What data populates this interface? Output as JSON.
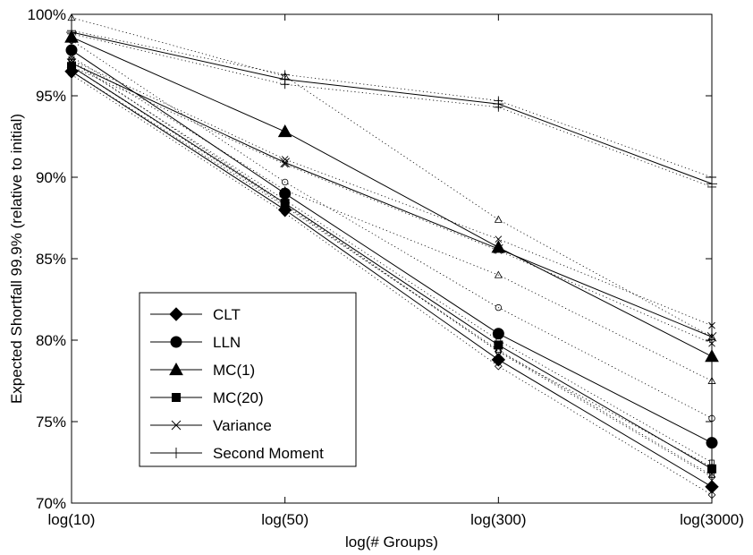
{
  "chart_data": {
    "type": "line",
    "xlabel": "log(# Groups)",
    "ylabel": "Expected Shortfall 99.9% (relative to initial)",
    "categories": [
      "log(10)",
      "log(50)",
      "log(300)",
      "log(3000)"
    ],
    "yticks": [
      "70%",
      "75%",
      "80%",
      "85%",
      "90%",
      "95%",
      "100%"
    ],
    "ylim": [
      70,
      100
    ],
    "grid": false,
    "legend_position": "lower-left",
    "series": [
      {
        "name": "CLT",
        "marker": "diamond",
        "values": [
          96.5,
          88.0,
          78.8,
          71.0
        ],
        "band_upper": [
          96.8,
          88.3,
          79.3,
          71.6
        ],
        "band_lower": [
          96.3,
          87.8,
          78.4,
          70.5
        ]
      },
      {
        "name": "LLN",
        "marker": "circle",
        "values": [
          97.8,
          89.0,
          80.4,
          73.7
        ],
        "band_upper": [
          98.4,
          89.7,
          82.0,
          75.2
        ],
        "band_lower": [
          97.2,
          88.4,
          79.3,
          72.2
        ]
      },
      {
        "name": "MC(1)",
        "marker": "triangle",
        "values": [
          98.6,
          92.8,
          85.7,
          79.0
        ],
        "band_upper": [
          99.8,
          96.2,
          87.4,
          80.2
        ],
        "band_lower": [
          97.4,
          89.2,
          84.0,
          77.5
        ]
      },
      {
        "name": "MC(20)",
        "marker": "square",
        "values": [
          96.8,
          88.4,
          79.7,
          72.1
        ],
        "band_upper": [
          97.1,
          88.6,
          80.0,
          72.5
        ],
        "band_lower": [
          96.5,
          88.2,
          79.4,
          71.7
        ]
      },
      {
        "name": "Variance",
        "marker": "x",
        "values": [
          97.0,
          90.9,
          85.6,
          80.2
        ],
        "band_upper": [
          97.2,
          91.1,
          86.2,
          80.9
        ],
        "band_lower": [
          96.8,
          90.8,
          85.5,
          79.8
        ]
      },
      {
        "name": "Second Moment",
        "marker": "plus",
        "values": [
          98.9,
          96.0,
          94.5,
          89.6
        ],
        "band_upper": [
          99.0,
          96.3,
          94.7,
          90.0
        ],
        "band_lower": [
          98.8,
          95.7,
          94.3,
          89.4
        ]
      }
    ]
  }
}
